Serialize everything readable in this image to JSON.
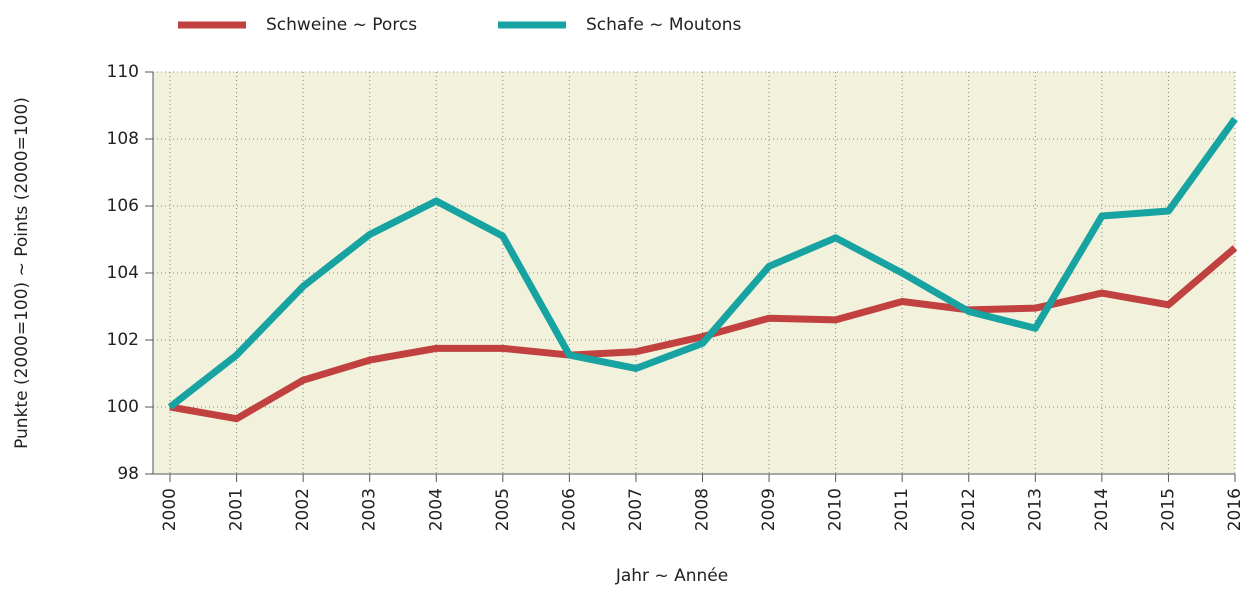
{
  "chart_data": {
    "type": "line",
    "xlabel": "Jahr ~ Année",
    "ylabel": "Punkte (2000=100) ~ Points (2000=100)",
    "categories": [
      "2000",
      "2001",
      "2002",
      "2003",
      "2004",
      "2005",
      "2006",
      "2007",
      "2008",
      "2009",
      "2010",
      "2011",
      "2012",
      "2013",
      "2014",
      "2015",
      "2016"
    ],
    "series": [
      {
        "name": "Schweine ~ Porcs",
        "color": "#c0413f",
        "values": [
          100,
          99.65,
          100.8,
          101.4,
          101.75,
          101.75,
          101.55,
          101.65,
          102.1,
          102.65,
          102.6,
          103.15,
          102.9,
          102.95,
          103.4,
          103.05,
          104.75
        ]
      },
      {
        "name": "Schafe ~ Moutons",
        "color": "#16a3a1",
        "values": [
          100,
          101.55,
          103.6,
          105.15,
          106.15,
          105.1,
          101.55,
          101.15,
          101.9,
          104.2,
          105.05,
          104.0,
          102.85,
          102.35,
          105.7,
          105.85,
          108.6
        ]
      }
    ],
    "ylim": [
      98,
      110
    ],
    "yticks": [
      98,
      100,
      102,
      104,
      106,
      108,
      110
    ],
    "grid": true,
    "legend": "top"
  }
}
